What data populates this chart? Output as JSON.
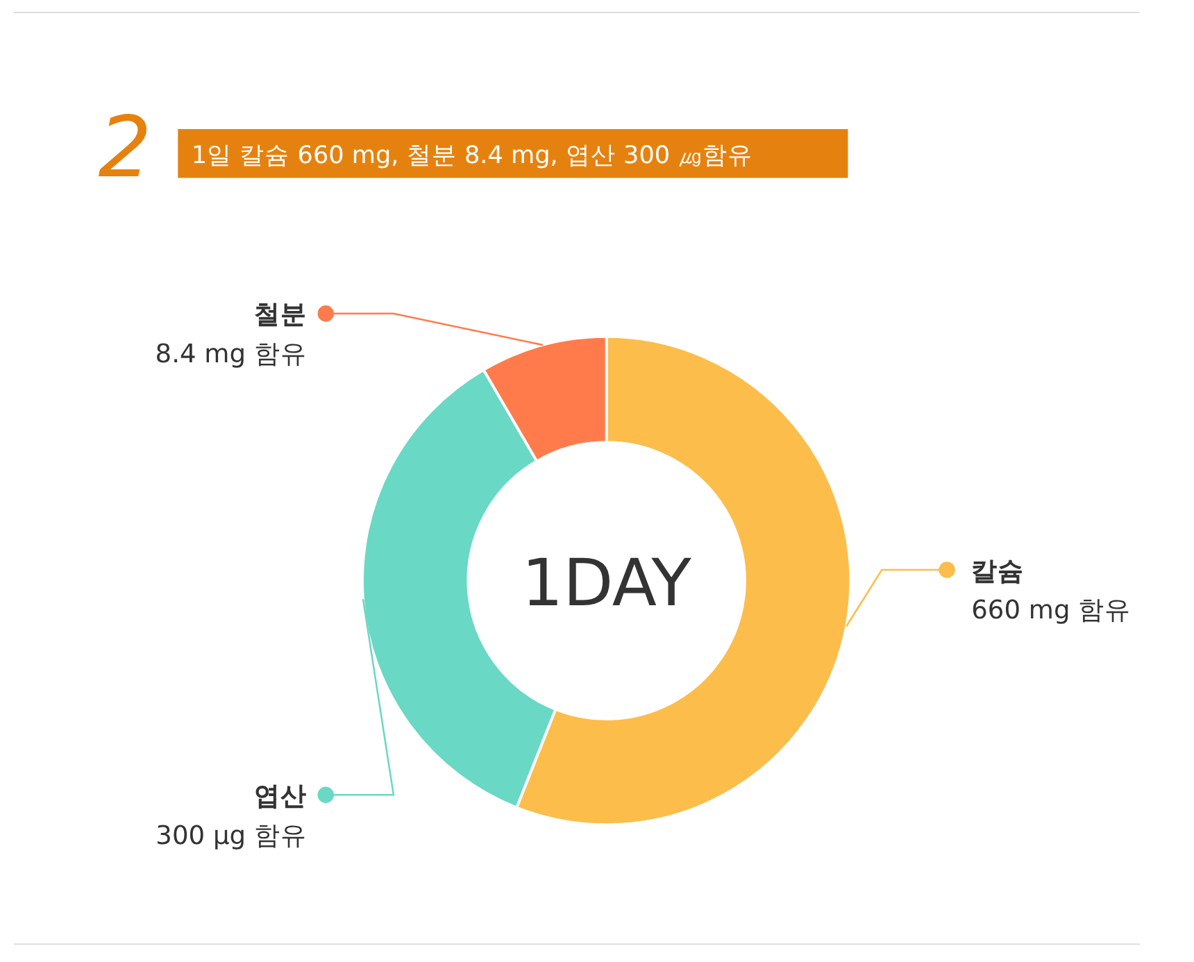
{
  "chart_data": {
    "type": "donut",
    "title": "1일 칼슘 660 mg, 철분 8.4 mg, 엽산 300 ㎍함유",
    "categories": [
      "칼슘",
      "엽산",
      "철분"
    ],
    "values": [
      56,
      35.6,
      8.4
    ],
    "colors": [
      "#fcbd4b",
      "#69d8c5",
      "#ff7b4b"
    ],
    "annotations": [
      "2",
      "1DAY",
      "660 mg 함유",
      "300 µg 함유",
      "8.4 mg 함유"
    ],
    "legend": "left"
  }
}
